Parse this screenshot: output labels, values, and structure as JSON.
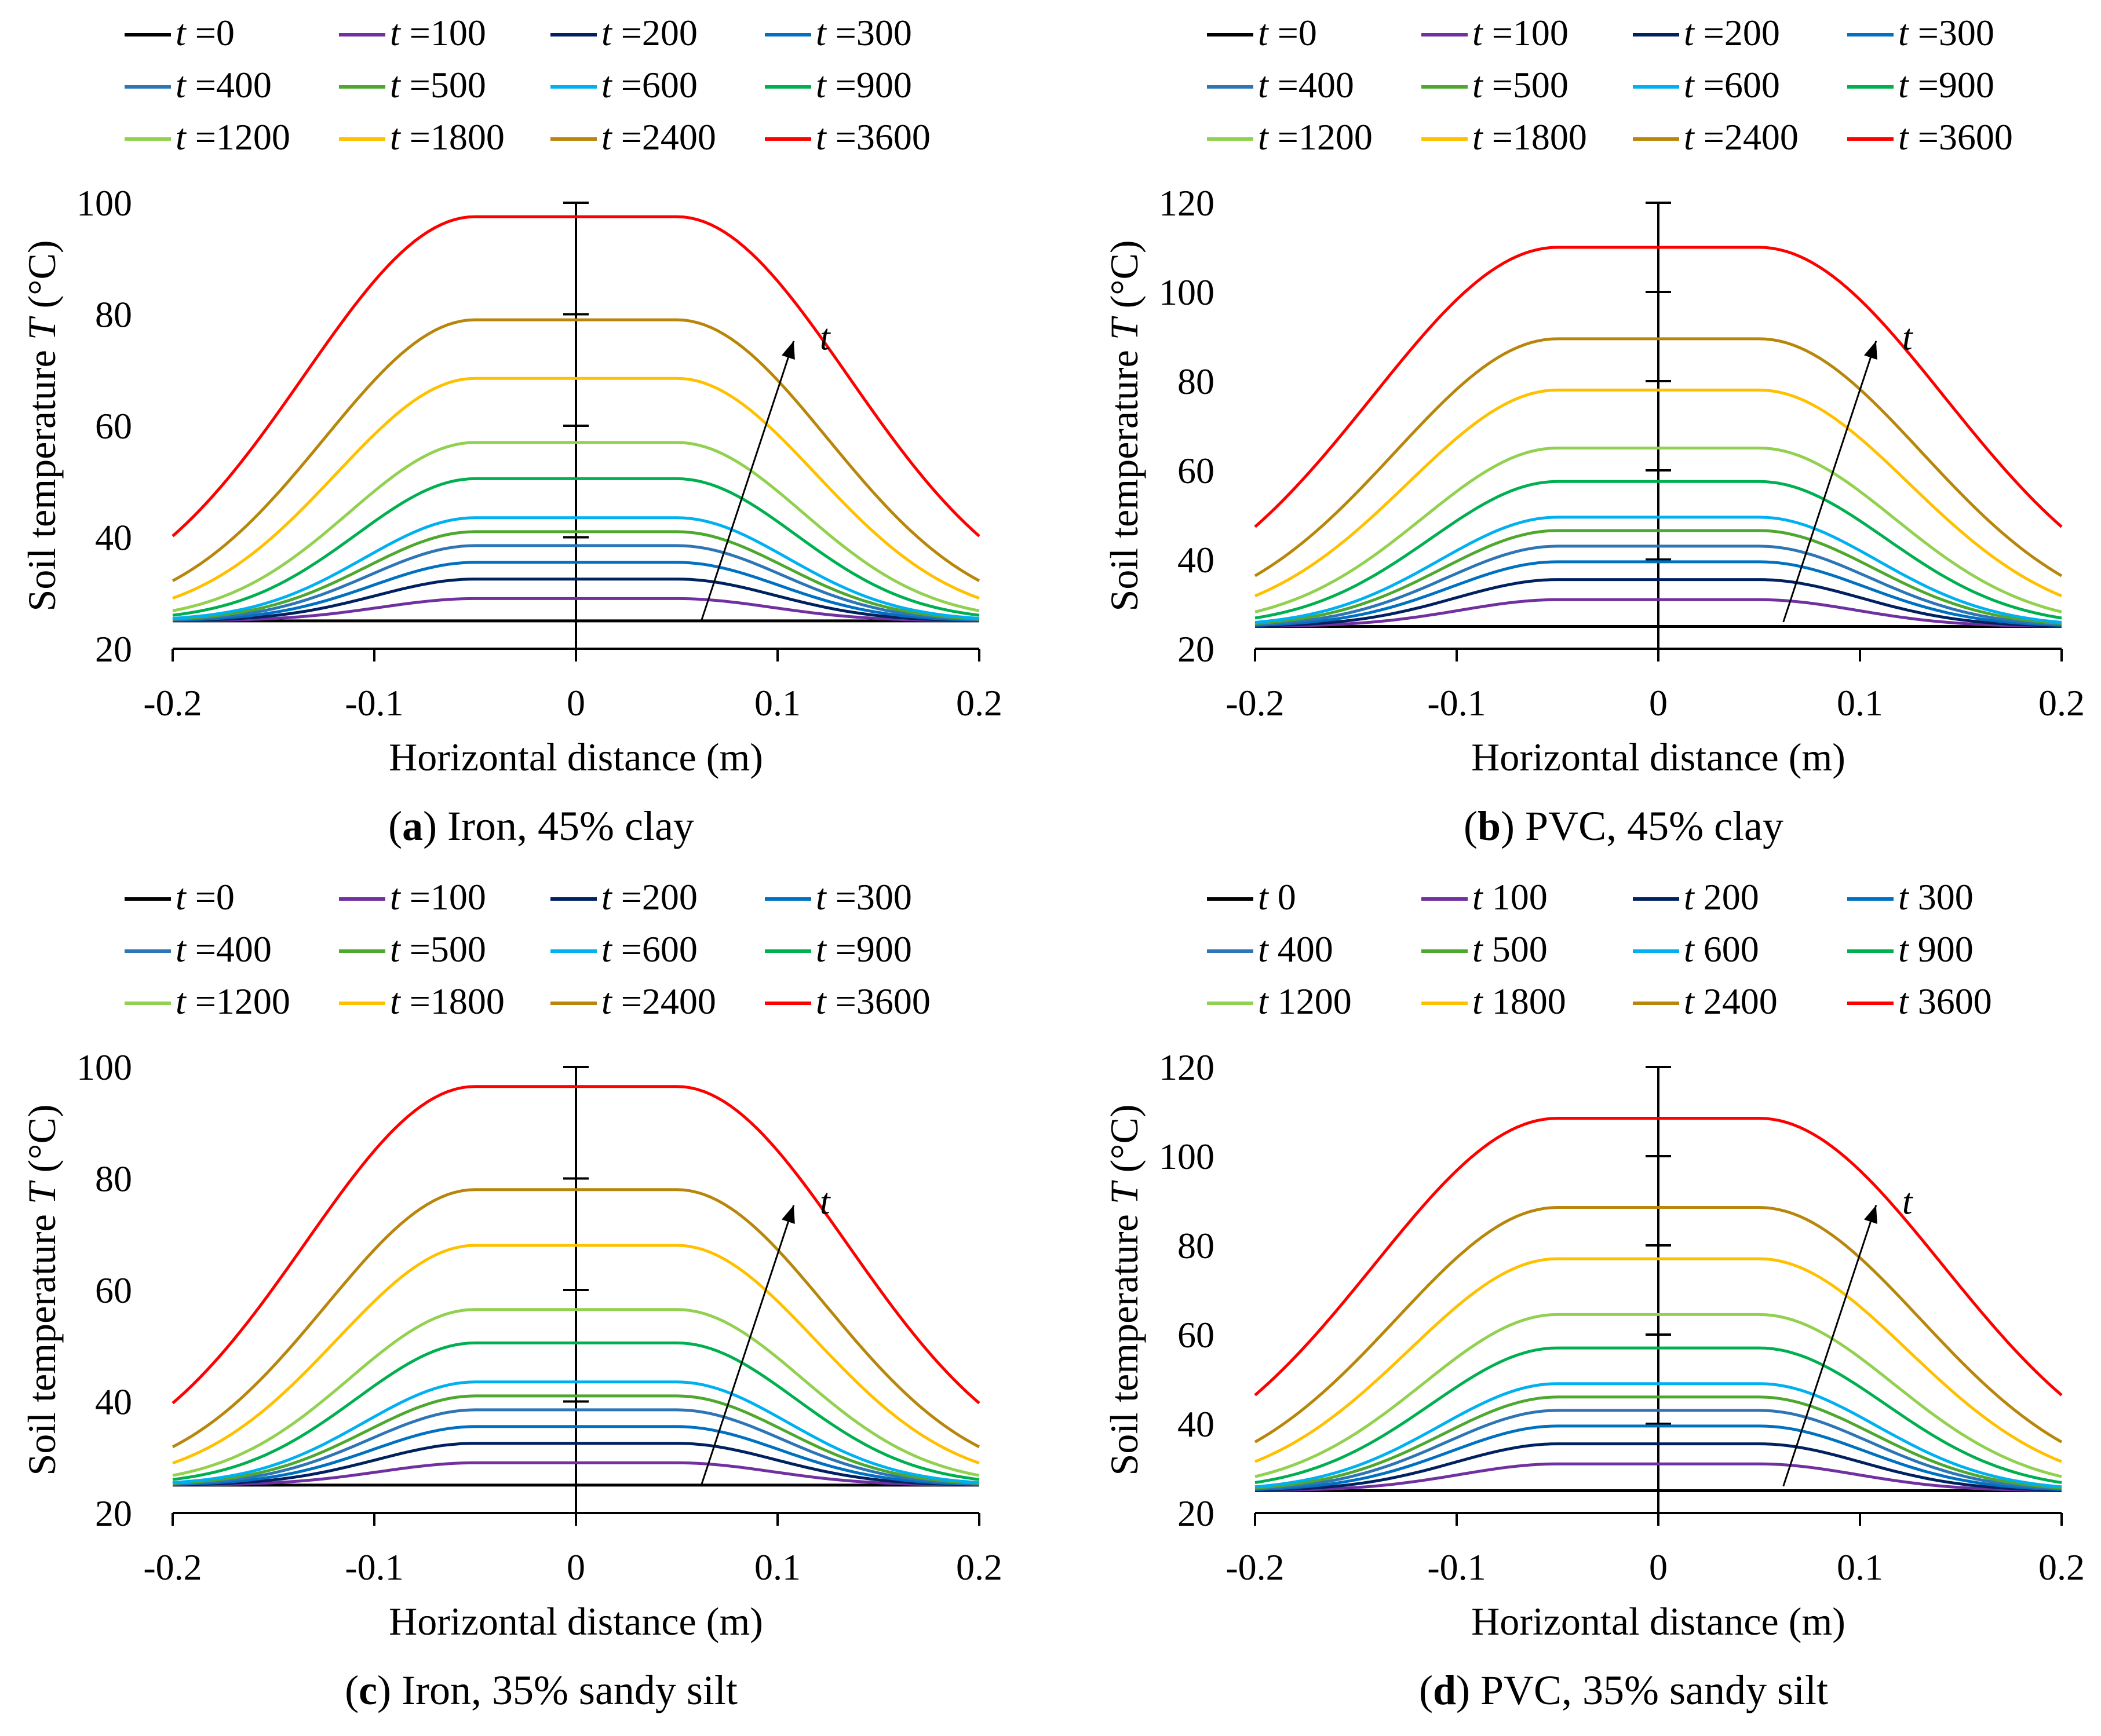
{
  "figure": {
    "legend_series_labels": [
      "t =0",
      "t =100",
      "t =200",
      "t =300",
      "t =400",
      "t =500",
      "t =600",
      "t =900",
      "t =1200",
      "t =1800",
      "t =2400",
      "t =3600"
    ],
    "legend_series_labels_panel_d": [
      "t 0",
      "t 100",
      "t 200",
      "t 300",
      "t 400",
      "t 500",
      "t 600",
      "t 900",
      "t 1200",
      "t 1800",
      "t 2400",
      "t 3600"
    ],
    "series_colors": [
      "#000000",
      "#7030A0",
      "#002060",
      "#0070C0",
      "#2E75B6",
      "#4EA72E",
      "#00B0F0",
      "#00B050",
      "#92D050",
      "#FFC000",
      "#B8860B",
      "#FF0000"
    ],
    "arrow_label": "t"
  },
  "chart_data": [
    {
      "type": "line",
      "panel": "a",
      "caption_letter": "a",
      "caption_text": ") Iron, 45% clay",
      "xlabel": "Horizontal distance (m)",
      "ylabel": "Soil temperature T (°C)",
      "xlim": [
        -0.2,
        0.2
      ],
      "ylim": [
        20,
        100
      ],
      "xticks": [
        "-0.2",
        "-0.1",
        "0",
        "0.1",
        "0.2"
      ],
      "yticks": [
        "20",
        "40",
        "60",
        "80",
        "100"
      ],
      "baseline": 25,
      "plateau_x": [
        -0.05,
        0.05
      ],
      "series": [
        {
          "name": "t =0",
          "peak": 25
        },
        {
          "name": "t =100",
          "peak": 29
        },
        {
          "name": "t =200",
          "peak": 32.5
        },
        {
          "name": "t =300",
          "peak": 35.5
        },
        {
          "name": "t =400",
          "peak": 38.5
        },
        {
          "name": "t =500",
          "peak": 41
        },
        {
          "name": "t =600",
          "peak": 43.5
        },
        {
          "name": "t =900",
          "peak": 50.5
        },
        {
          "name": "t =1200",
          "peak": 57
        },
        {
          "name": "t =1800",
          "peak": 68.5
        },
        {
          "name": "t =2400",
          "peak": 79
        },
        {
          "name": "t =3600",
          "peak": 97.5
        }
      ]
    },
    {
      "type": "line",
      "panel": "b",
      "caption_letter": "b",
      "caption_text": ") PVC, 45% clay",
      "xlabel": "Horizontal distance (m)",
      "ylabel": "Soil temperature T (°C)",
      "xlim": [
        -0.2,
        0.2
      ],
      "ylim": [
        20,
        120
      ],
      "xticks": [
        "-0.2",
        "-0.1",
        "0",
        "0.1",
        "0.2"
      ],
      "yticks": [
        "20",
        "40",
        "60",
        "80",
        "100",
        "120"
      ],
      "baseline": 25,
      "plateau_x": [
        -0.05,
        0.05
      ],
      "series": [
        {
          "name": "t =0",
          "peak": 25
        },
        {
          "name": "t =100",
          "peak": 31
        },
        {
          "name": "t =200",
          "peak": 35.5
        },
        {
          "name": "t =300",
          "peak": 39.5
        },
        {
          "name": "t =400",
          "peak": 43
        },
        {
          "name": "t =500",
          "peak": 46.5
        },
        {
          "name": "t =600",
          "peak": 49.5
        },
        {
          "name": "t =900",
          "peak": 57.5
        },
        {
          "name": "t =1200",
          "peak": 65
        },
        {
          "name": "t =1800",
          "peak": 78
        },
        {
          "name": "t =2400",
          "peak": 89.5
        },
        {
          "name": "t =3600",
          "peak": 110
        }
      ]
    },
    {
      "type": "line",
      "panel": "c",
      "caption_letter": "c",
      "caption_text": ") Iron, 35% sandy silt",
      "xlabel": "Horizontal distance (m)",
      "ylabel": "Soil temperature T (°C)",
      "xlim": [
        -0.2,
        0.2
      ],
      "ylim": [
        20,
        100
      ],
      "xticks": [
        "-0.2",
        "-0.1",
        "0",
        "0.1",
        "0.2"
      ],
      "yticks": [
        "20",
        "40",
        "60",
        "80",
        "100"
      ],
      "baseline": 25,
      "plateau_x": [
        -0.05,
        0.05
      ],
      "series": [
        {
          "name": "t =0",
          "peak": 25
        },
        {
          "name": "t =100",
          "peak": 29
        },
        {
          "name": "t =200",
          "peak": 32.5
        },
        {
          "name": "t =300",
          "peak": 35.5
        },
        {
          "name": "t =400",
          "peak": 38.5
        },
        {
          "name": "t =500",
          "peak": 41
        },
        {
          "name": "t =600",
          "peak": 43.5
        },
        {
          "name": "t =900",
          "peak": 50.5
        },
        {
          "name": "t =1200",
          "peak": 56.5
        },
        {
          "name": "t =1800",
          "peak": 68
        },
        {
          "name": "t =2400",
          "peak": 78
        },
        {
          "name": "t =3600",
          "peak": 96.5
        }
      ]
    },
    {
      "type": "line",
      "panel": "d",
      "caption_letter": "d",
      "caption_text": ") PVC, 35% sandy silt",
      "xlabel": "Horizontal distance (m)",
      "ylabel": "Soil temperature T (°C)",
      "xlim": [
        -0.2,
        0.2
      ],
      "ylim": [
        20,
        120
      ],
      "xticks": [
        "-0.2",
        "-0.1",
        "0",
        "0.1",
        "0.2"
      ],
      "yticks": [
        "20",
        "40",
        "60",
        "80",
        "100",
        "120"
      ],
      "baseline": 25,
      "plateau_x": [
        -0.05,
        0.05
      ],
      "series": [
        {
          "name": "t 0",
          "peak": 25
        },
        {
          "name": "t 100",
          "peak": 31
        },
        {
          "name": "t 200",
          "peak": 35.5
        },
        {
          "name": "t 300",
          "peak": 39.5
        },
        {
          "name": "t 400",
          "peak": 43
        },
        {
          "name": "t 500",
          "peak": 46
        },
        {
          "name": "t 600",
          "peak": 49
        },
        {
          "name": "t 900",
          "peak": 57
        },
        {
          "name": "t 1200",
          "peak": 64.5
        },
        {
          "name": "t 1800",
          "peak": 77
        },
        {
          "name": "t 2400",
          "peak": 88.5
        },
        {
          "name": "t 3600",
          "peak": 108.5
        }
      ]
    }
  ]
}
